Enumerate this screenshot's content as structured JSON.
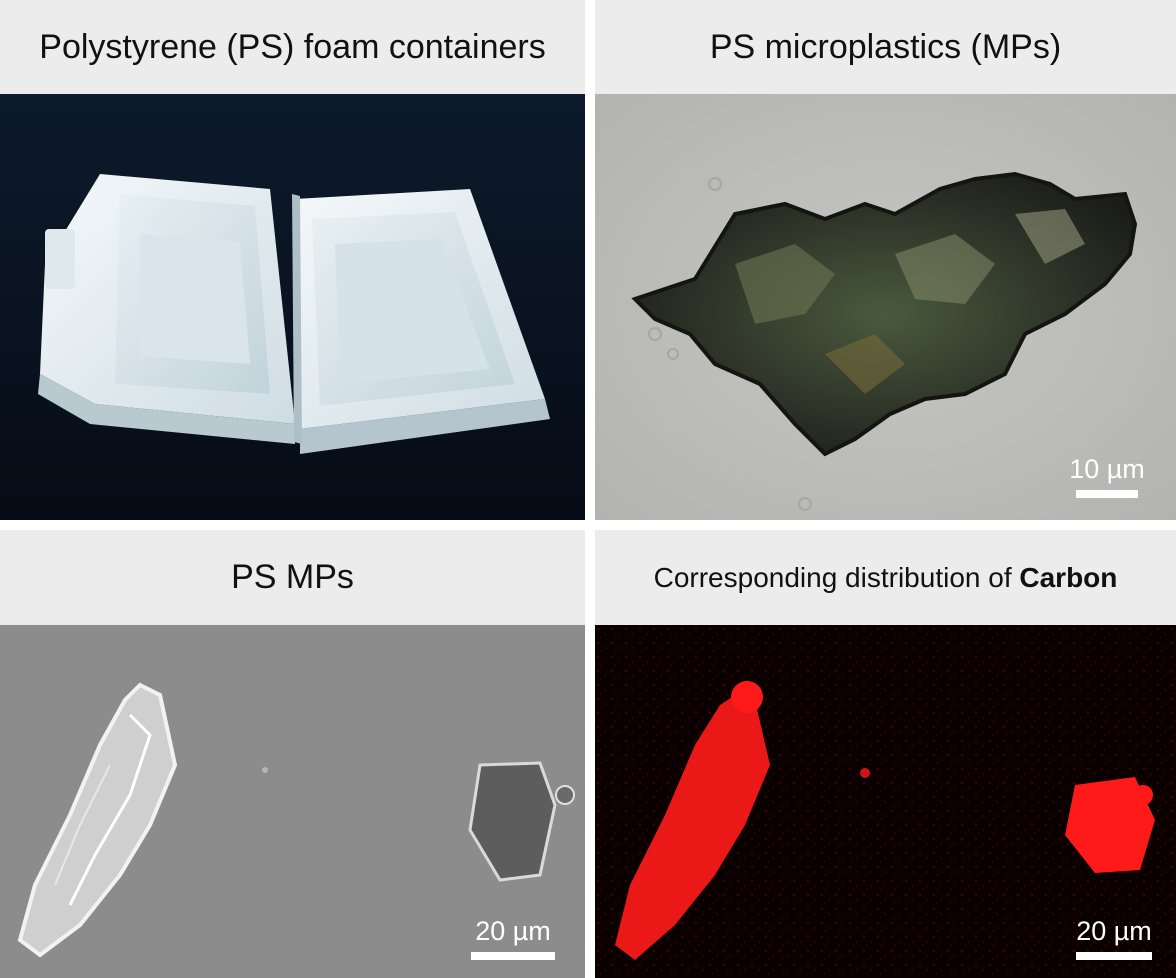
{
  "panels": {
    "top_left": {
      "title": "Polystyrene (PS) foam containers"
    },
    "top_right": {
      "title": "PS microplastics (MPs)",
      "scale_label": "10 µm"
    },
    "bottom_left": {
      "title": "PS MPs",
      "scale_label": "20 µm"
    },
    "bottom_right": {
      "title_prefix": "Corresponding distribution of ",
      "title_bold": "Carbon",
      "scale_label": "20 µm"
    }
  },
  "colors": {
    "header_background": "#ececec",
    "photo_background": "#0b1524",
    "micrograph_background": "#bcbcbc",
    "sem_background": "#8a8a8a",
    "eds_background": "#0a0000",
    "carbon_signal": "#ff1a1a"
  }
}
